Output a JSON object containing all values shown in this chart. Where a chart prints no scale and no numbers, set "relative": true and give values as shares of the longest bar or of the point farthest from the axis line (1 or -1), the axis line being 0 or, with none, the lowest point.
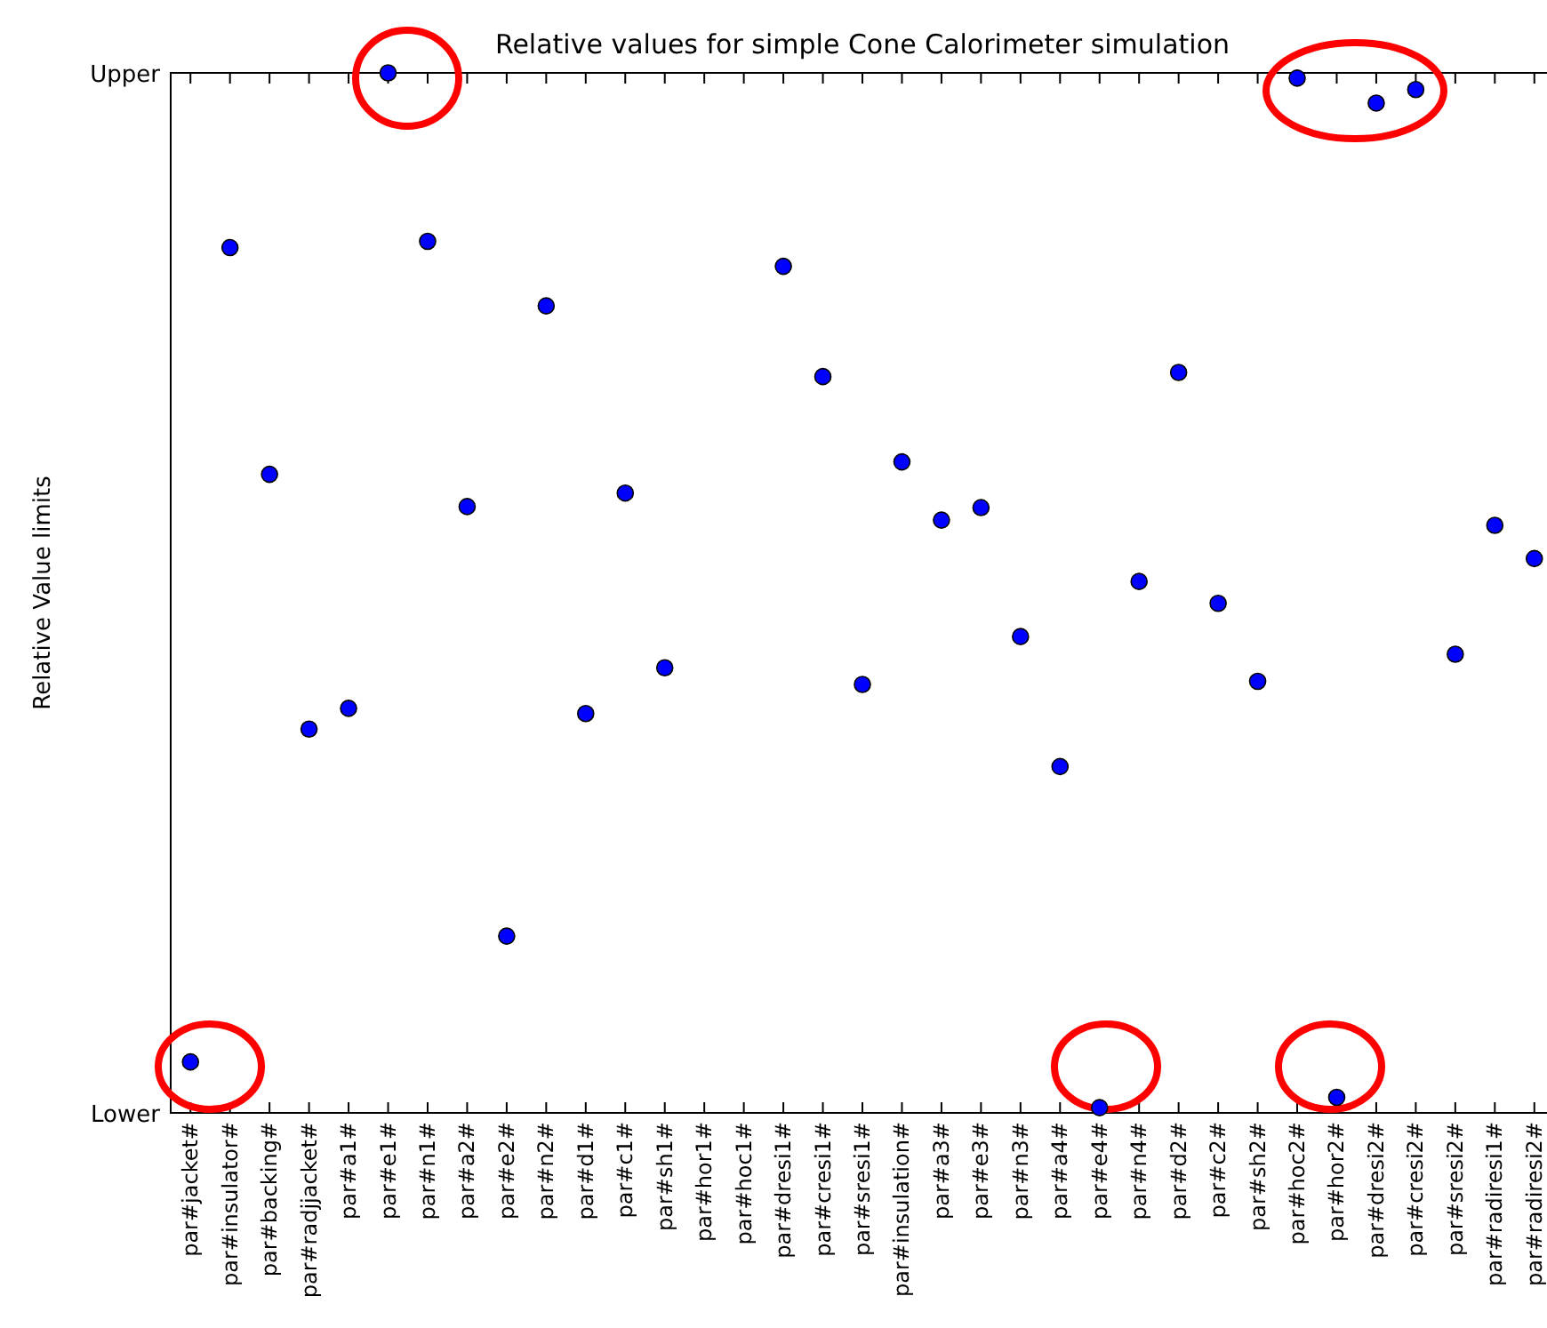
{
  "chart_data": {
    "type": "scatter",
    "title": "Relative values for simple Cone Calorimeter simulation",
    "ylabel": "Relative Value limits",
    "categories": [
      "par#jacket#",
      "par#insulator#",
      "par#backing#",
      "par#radjjacket#",
      "par#a1#",
      "par#e1#",
      "par#n1#",
      "par#a2#",
      "par#e2#",
      "par#n2#",
      "par#d1#",
      "par#c1#",
      "par#sh1#",
      "par#hor1#",
      "par#hoc1#",
      "par#dresi1#",
      "par#cresi1#",
      "par#sresi1#",
      "par#insulation#",
      "par#a3#",
      "par#e3#",
      "par#n3#",
      "par#a4#",
      "par#e4#",
      "par#n4#",
      "par#d2#",
      "par#c2#",
      "par#sh2#",
      "par#hoc2#",
      "par#hor2#",
      "par#dresi2#",
      "par#cresi2#",
      "par#sresi2#",
      "par#radiresi1#",
      "par#radiresi2#"
    ],
    "series": [
      {
        "color": "#0000ff",
        "values": [
          0.049,
          0.832,
          0.614,
          0.369,
          0.389,
          1.0,
          0.838,
          0.583,
          0.17,
          0.776,
          0.384,
          0.596,
          0.428,
          null,
          null,
          0.814,
          0.708,
          0.412,
          0.626,
          0.57,
          0.582,
          0.458,
          0.333,
          0.005,
          0.511,
          0.712,
          0.49,
          0.415,
          0.995,
          0.015,
          0.971,
          0.984,
          0.441,
          0.565,
          0.533
        ]
      }
    ],
    "relative": true,
    "annotations": [
      "Lower",
      "Upper"
    ],
    "grid": false,
    "marker": "circle"
  }
}
